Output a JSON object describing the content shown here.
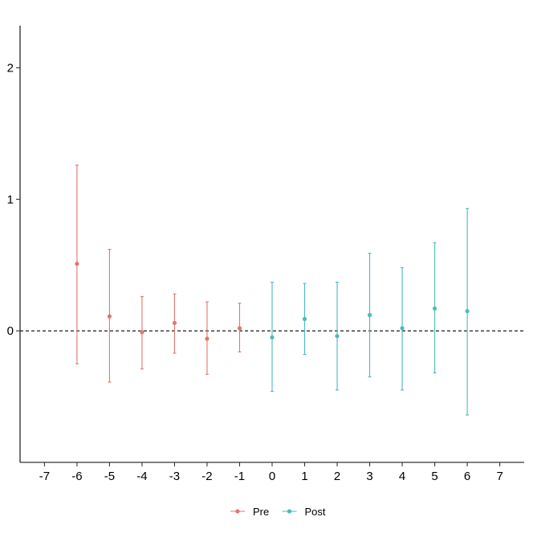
{
  "chart_data": {
    "type": "scatter",
    "subtype": "coefficient plot with error bars",
    "title": "",
    "xlabel": "",
    "ylabel": "",
    "x_ticks": [
      -7,
      -6,
      -5,
      -4,
      -3,
      -2,
      -1,
      0,
      1,
      2,
      3,
      4,
      5,
      6,
      7
    ],
    "y_ticks": [
      0,
      1,
      2
    ],
    "xlim": [
      -7.75,
      7.75
    ],
    "ylim": [
      -1.0,
      2.32
    ],
    "reference_line": {
      "y": 0,
      "style": "dashed"
    },
    "grid": false,
    "legend_position": "bottom",
    "series": [
      {
        "name": "Pre",
        "color": "#E2766B",
        "points": [
          {
            "x": -6,
            "y": 0.51,
            "lo": -0.25,
            "hi": 1.26
          },
          {
            "x": -5,
            "y": 0.11,
            "lo": -0.39,
            "hi": 0.62
          },
          {
            "x": -4,
            "y": -0.01,
            "lo": -0.29,
            "hi": 0.26
          },
          {
            "x": -3,
            "y": 0.06,
            "lo": -0.17,
            "hi": 0.28
          },
          {
            "x": -2,
            "y": -0.06,
            "lo": -0.33,
            "hi": 0.22
          },
          {
            "x": -1,
            "y": 0.02,
            "lo": -0.16,
            "hi": 0.21
          }
        ]
      },
      {
        "name": "Post",
        "color": "#4DBABA",
        "points": [
          {
            "x": 0,
            "y": -0.05,
            "lo": -0.46,
            "hi": 0.37
          },
          {
            "x": 1,
            "y": 0.09,
            "lo": -0.18,
            "hi": 0.36
          },
          {
            "x": 2,
            "y": -0.04,
            "lo": -0.45,
            "hi": 0.37
          },
          {
            "x": 3,
            "y": 0.12,
            "lo": -0.35,
            "hi": 0.59
          },
          {
            "x": 4,
            "y": 0.02,
            "lo": -0.45,
            "hi": 0.48
          },
          {
            "x": 5,
            "y": 0.17,
            "lo": -0.32,
            "hi": 0.67
          },
          {
            "x": 6,
            "y": 0.15,
            "lo": -0.64,
            "hi": 0.93
          }
        ]
      }
    ]
  }
}
